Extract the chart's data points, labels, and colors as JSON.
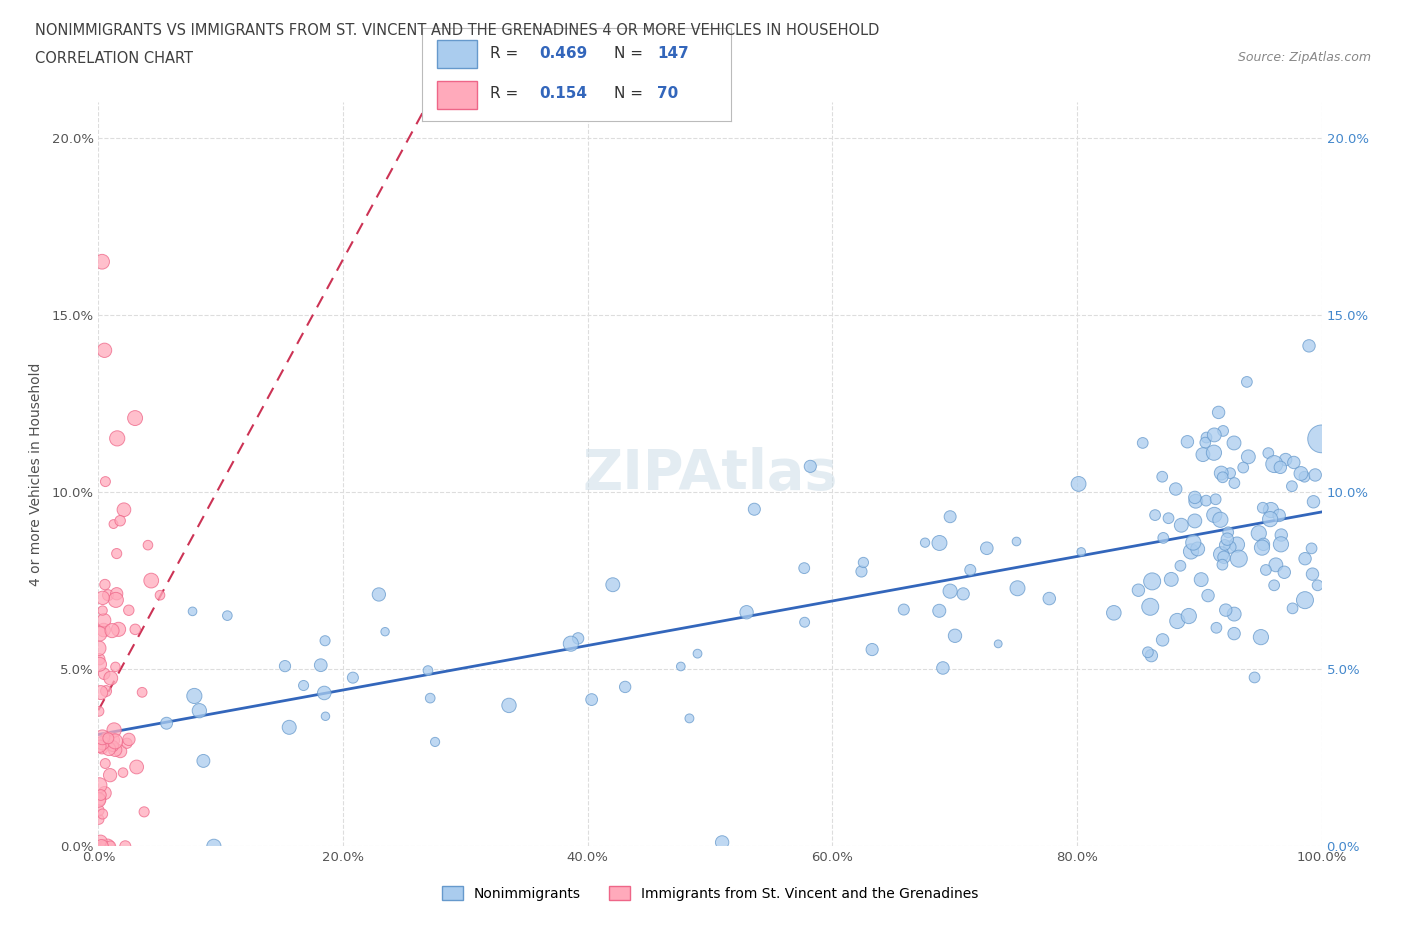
{
  "title_line1": "NONIMMIGRANTS VS IMMIGRANTS FROM ST. VINCENT AND THE GRENADINES 4 OR MORE VEHICLES IN HOUSEHOLD",
  "title_line2": "CORRELATION CHART",
  "source_text": "Source: ZipAtlas.com",
  "ylabel": "4 or more Vehicles in Household",
  "xlim": [
    0.0,
    1.0
  ],
  "ylim": [
    0.0,
    0.21
  ],
  "xticks": [
    0.0,
    0.2,
    0.4,
    0.6,
    0.8,
    1.0
  ],
  "xtick_labels": [
    "0.0%",
    "20.0%",
    "40.0%",
    "60.0%",
    "80.0%",
    "100.0%"
  ],
  "ytick_vals": [
    0.0,
    0.05,
    0.1,
    0.15,
    0.2
  ],
  "ytick_labels": [
    "0.0%",
    "5.0%",
    "10.0%",
    "15.0%",
    "20.0%"
  ],
  "nonimm_color": "#aaccee",
  "nonimm_edge_color": "#6699cc",
  "imm_color": "#ffaabb",
  "imm_edge_color": "#ee6688",
  "nonimm_R": 0.469,
  "nonimm_N": 147,
  "imm_R": 0.154,
  "imm_N": 70,
  "trend_color_nonimm": "#3366bb",
  "trend_color_imm": "#cc3355",
  "legend_label_nonimm": "Nonimmigrants",
  "legend_label_imm": "Immigrants from St. Vincent and the Grenadines",
  "watermark": "ZIPAtlas",
  "background_color": "#ffffff",
  "grid_color": "#dddddd",
  "title_color": "#404040",
  "axis_label_color": "#505050",
  "right_tick_color": "#4488cc"
}
